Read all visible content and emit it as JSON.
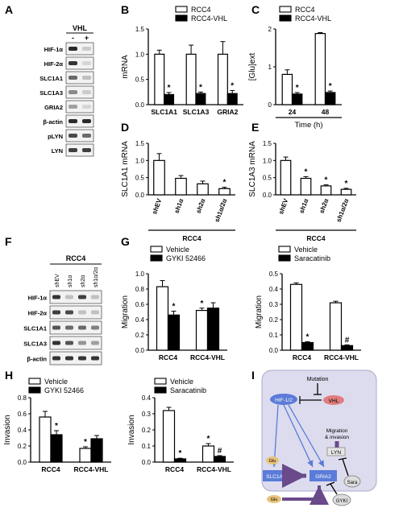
{
  "panel_labels": [
    "A",
    "B",
    "C",
    "D",
    "E",
    "F",
    "G",
    "H",
    "I"
  ],
  "blot_A": {
    "header": "VHL",
    "lanes": [
      "-",
      "+"
    ],
    "rows": [
      "HIF-1α",
      "HIF-2α",
      "SLC1A1",
      "SLC1A3",
      "GRIA2",
      "β-actin",
      "pLYN",
      "LYN"
    ],
    "bands": [
      [
        0.9,
        0.15
      ],
      [
        0.85,
        0.1
      ],
      [
        0.6,
        0.2
      ],
      [
        0.45,
        0.15
      ],
      [
        0.35,
        0.1
      ],
      [
        0.9,
        0.9
      ],
      [
        0.75,
        0.6
      ],
      [
        0.8,
        0.8
      ]
    ]
  },
  "blot_F": {
    "header": "RCC4",
    "lanes": [
      "shEV",
      "sh1α",
      "sh2α",
      "sh1α/2α"
    ],
    "rows": [
      "HIF-1α",
      "HIF-2α",
      "SLC1A1",
      "SLC1A3",
      "β-actin"
    ],
    "bands": [
      [
        0.85,
        0.2,
        0.8,
        0.2
      ],
      [
        0.8,
        0.75,
        0.2,
        0.2
      ],
      [
        0.7,
        0.6,
        0.6,
        0.5
      ],
      [
        0.85,
        0.7,
        0.4,
        0.35
      ],
      [
        0.85,
        0.85,
        0.85,
        0.85
      ]
    ]
  },
  "diagram_I": {
    "mutation": "Mutation",
    "hif": "HIF-1/2",
    "vhl": "VHL",
    "migration": "Migration\n& invasion",
    "lyn": "LYN",
    "glu": "Glu",
    "slc": "SLC1A1/3",
    "gria2": "GRIA2",
    "sara": "Sara",
    "gyki": "GYKI",
    "colors": {
      "bg": "#dcdcee",
      "hif": "#5b7bd8",
      "vhl": "#e07d7d",
      "arrow": "#6a4a8a",
      "glu": "#e8c27a"
    }
  },
  "chart_data": [
    {
      "panel": "B",
      "type": "bar",
      "ylabel": "mRNA",
      "ylim": [
        0,
        1.5
      ],
      "yticks": [
        "0.0",
        "0.5",
        "1.0",
        "1.5"
      ],
      "categories": [
        "SLC1A1",
        "SLC1A3",
        "GRIA2"
      ],
      "series": [
        {
          "name": "RCC4",
          "fill": "#ffffff",
          "values": [
            1.0,
            1.0,
            1.0
          ],
          "err": [
            0.08,
            0.18,
            0.25
          ]
        },
        {
          "name": "RCC4-VHL",
          "fill": "#000000",
          "values": [
            0.2,
            0.22,
            0.22
          ],
          "err": [
            0.04,
            0.03,
            0.06
          ]
        }
      ],
      "stars": [
        [
          false,
          true
        ],
        [
          false,
          true
        ],
        [
          false,
          true
        ]
      ]
    },
    {
      "panel": "C",
      "type": "bar",
      "ylabel": "[Glu]ext",
      "xlabel": "Time (h)",
      "ylim": [
        0,
        2.5
      ],
      "yticks": [
        "0",
        "1",
        "2"
      ],
      "categories": [
        "24",
        "48"
      ],
      "series": [
        {
          "name": "RCC4",
          "fill": "#ffffff",
          "values": [
            1.0,
            2.35
          ],
          "err": [
            0.15,
            0.03
          ]
        },
        {
          "name": "RCC4-VHL",
          "fill": "#000000",
          "values": [
            0.35,
            0.4
          ],
          "err": [
            0.05,
            0.05
          ]
        }
      ],
      "stars": [
        [
          false,
          true
        ],
        [
          false,
          true
        ]
      ]
    },
    {
      "panel": "D",
      "type": "bar",
      "ylabel": "SLC1A1 mRNA",
      "xlabel": "RCC4",
      "ylim": [
        0,
        1.5
      ],
      "yticks": [
        "0.0",
        "0.5",
        "1.0",
        "1.5"
      ],
      "categories": [
        "shEV",
        "sh1α",
        "sh2α",
        "sh1α/2α"
      ],
      "series": [
        {
          "fill": "#ffffff",
          "values": [
            1.0,
            0.48,
            0.32,
            0.18
          ],
          "err": [
            0.2,
            0.08,
            0.08,
            0.04
          ]
        }
      ],
      "stars": [
        [
          false
        ],
        [
          false
        ],
        [
          false
        ],
        [
          true
        ]
      ]
    },
    {
      "panel": "E",
      "type": "bar",
      "ylabel": "SLC1A3 mRNA",
      "xlabel": "RCC4",
      "ylim": [
        0,
        1.5
      ],
      "yticks": [
        "0.0",
        "0.5",
        "1.0",
        "1.5"
      ],
      "categories": [
        "shEV",
        "sh1α",
        "sh2α",
        "sh1α/2α"
      ],
      "series": [
        {
          "fill": "#ffffff",
          "values": [
            1.0,
            0.48,
            0.26,
            0.16
          ],
          "err": [
            0.1,
            0.05,
            0.03,
            0.03
          ]
        }
      ],
      "stars": [
        [
          false
        ],
        [
          true
        ],
        [
          true
        ],
        [
          true
        ]
      ]
    },
    {
      "panel": "G1",
      "type": "bar",
      "ylabel": "Migration",
      "ylim": [
        0,
        1.0
      ],
      "yticks": [
        "0.0",
        "0.2",
        "0.4",
        "0.6",
        "0.8",
        "1.0"
      ],
      "categories": [
        "RCC4",
        "RCC4-VHL"
      ],
      "series": [
        {
          "name": "Vehicle",
          "fill": "#ffffff",
          "values": [
            0.83,
            0.52
          ],
          "err": [
            0.08,
            0.03
          ]
        },
        {
          "name": "GYKI 52466",
          "fill": "#000000",
          "values": [
            0.46,
            0.55
          ],
          "err": [
            0.05,
            0.07
          ]
        }
      ],
      "stars": [
        [
          false,
          true
        ],
        [
          true,
          false
        ]
      ]
    },
    {
      "panel": "G2",
      "type": "bar",
      "ylabel": "Migration",
      "ylim": [
        0,
        0.5
      ],
      "yticks": [
        "0.0",
        "0.1",
        "0.2",
        "0.3",
        "0.4",
        "0.5"
      ],
      "categories": [
        "RCC4",
        "RCC4-VHL"
      ],
      "series": [
        {
          "name": "Vehicle",
          "fill": "#ffffff",
          "values": [
            0.43,
            0.31
          ],
          "err": [
            0.01,
            0.01
          ]
        },
        {
          "name": "Saracatinib",
          "fill": "#000000",
          "values": [
            0.05,
            0.03
          ],
          "err": [
            0.005,
            0.005
          ]
        }
      ],
      "stars": [
        [
          false,
          true
        ],
        [
          false,
          "#"
        ]
      ]
    },
    {
      "panel": "H1",
      "type": "bar",
      "ylabel": "Invasion",
      "ylim": [
        0,
        0.8
      ],
      "yticks": [
        "0.0",
        "0.2",
        "0.4",
        "0.6",
        "0.8"
      ],
      "categories": [
        "RCC4",
        "RCC4-VHL"
      ],
      "series": [
        {
          "name": "Vehicle",
          "fill": "#ffffff",
          "values": [
            0.56,
            0.17
          ],
          "err": [
            0.07,
            0.02
          ]
        },
        {
          "name": "GYKI 52466",
          "fill": "#000000",
          "values": [
            0.34,
            0.29
          ],
          "err": [
            0.05,
            0.04
          ]
        }
      ],
      "stars": [
        [
          false,
          true
        ],
        [
          true,
          false
        ]
      ]
    },
    {
      "panel": "H2",
      "type": "bar",
      "ylabel": "Invasion",
      "ylim": [
        0,
        0.4
      ],
      "yticks": [
        "0.0",
        "0.1",
        "0.2",
        "0.3",
        "0.4"
      ],
      "categories": [
        "RCC4",
        "RCC4-VHL"
      ],
      "series": [
        {
          "name": "Vehicle",
          "fill": "#ffffff",
          "values": [
            0.32,
            0.1
          ],
          "err": [
            0.02,
            0.015
          ]
        },
        {
          "name": "Saracatinib",
          "fill": "#000000",
          "values": [
            0.02,
            0.035
          ],
          "err": [
            0.004,
            0.005
          ]
        }
      ],
      "stars": [
        [
          false,
          true
        ],
        [
          true,
          "#"
        ]
      ]
    }
  ]
}
